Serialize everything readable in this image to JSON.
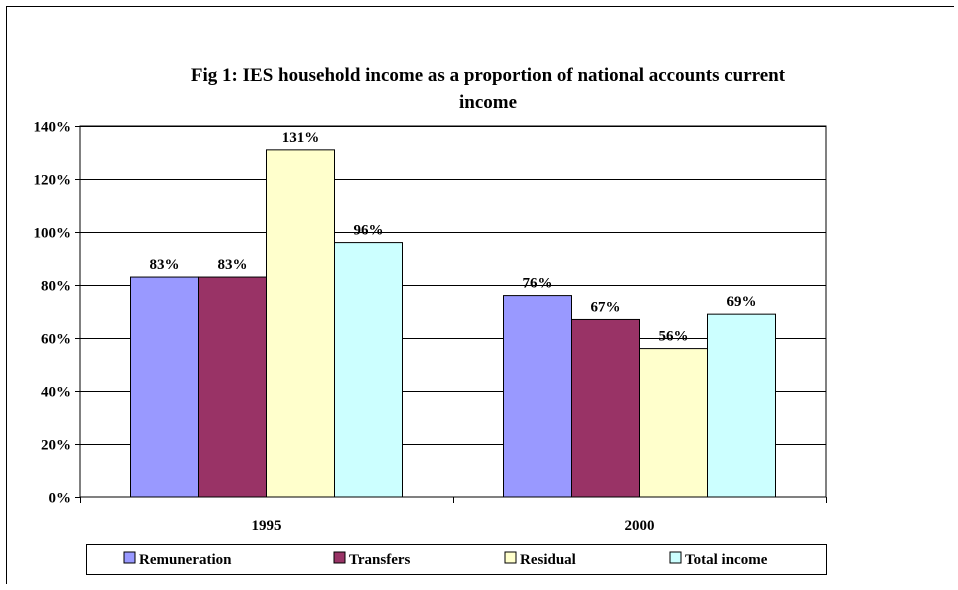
{
  "chart_data": {
    "type": "bar",
    "title": "Fig 1: IES household income as a proportion of national accounts current income",
    "title_lines": [
      "Fig 1: IES household income as a proportion of national accounts current",
      "income"
    ],
    "categories": [
      "1995",
      "2000"
    ],
    "series": [
      {
        "name": "Remuneration",
        "color": "#9999ff",
        "values": [
          83,
          76
        ],
        "labels": [
          "83%",
          "76%"
        ]
      },
      {
        "name": "Transfers",
        "color": "#993366",
        "values": [
          83,
          67
        ],
        "labels": [
          "83%",
          "67%"
        ]
      },
      {
        "name": "Residual",
        "color": "#ffffcc",
        "values": [
          131,
          56
        ],
        "labels": [
          "131%",
          "56%"
        ]
      },
      {
        "name": "Total income",
        "color": "#ccffff",
        "values": [
          96,
          69
        ],
        "labels": [
          "96%",
          "69%"
        ]
      }
    ],
    "y_ticks": [
      0,
      20,
      40,
      60,
      80,
      100,
      120,
      140
    ],
    "y_tick_labels": [
      "0%",
      "20%",
      "40%",
      "60%",
      "80%",
      "100%",
      "120%",
      "140%"
    ],
    "ylim": [
      0,
      140
    ],
    "grid": true,
    "legend_position": "bottom",
    "xlabel": "",
    "ylabel": ""
  }
}
